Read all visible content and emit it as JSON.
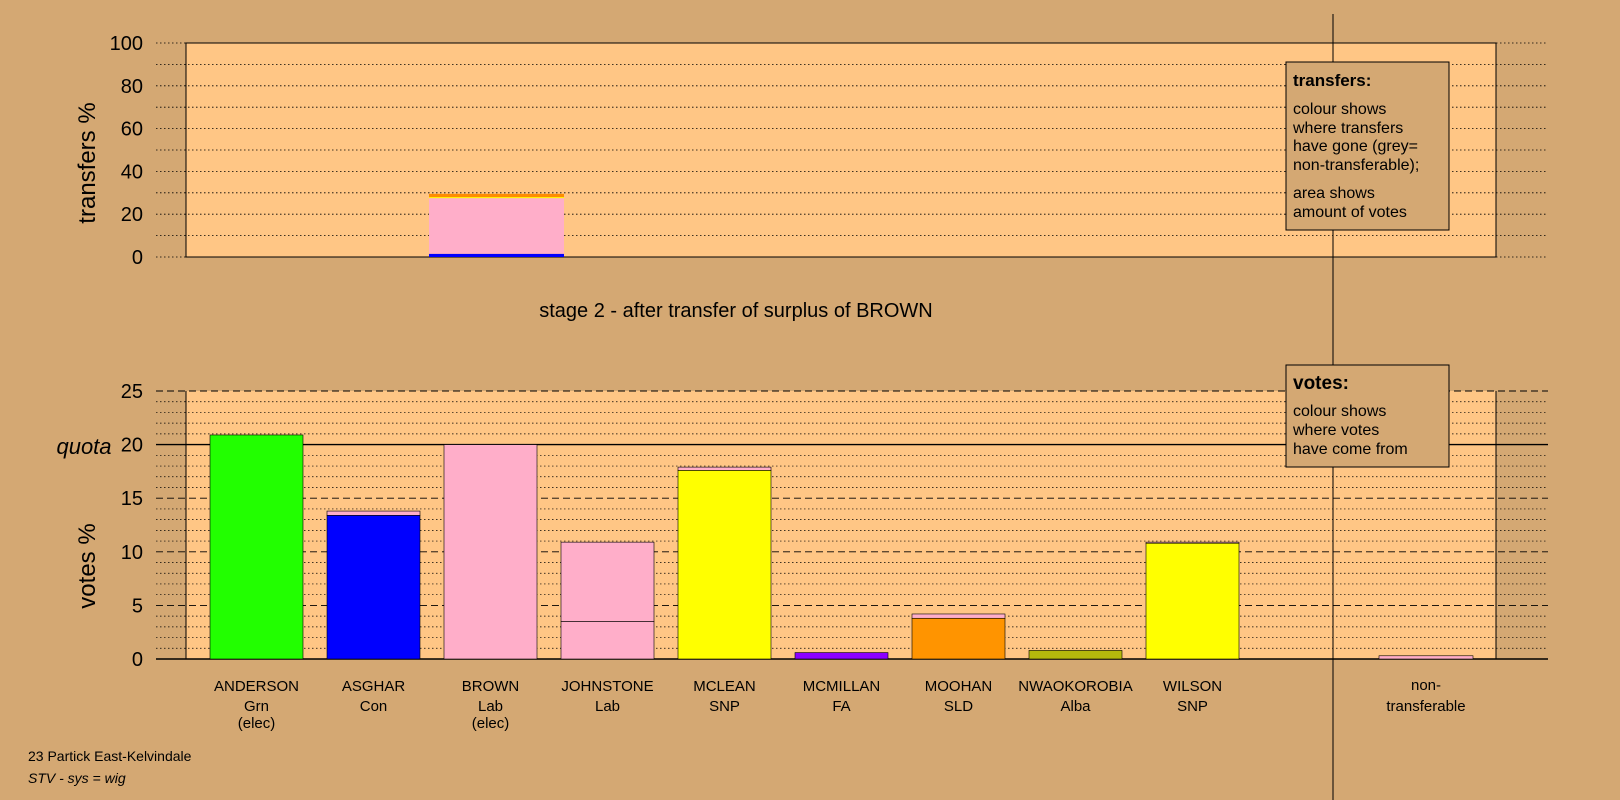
{
  "chart_data": [
    {
      "type": "bar",
      "subtitle": "stage 2 - after transfer of surplus of BROWN",
      "ylabel": "transfers %",
      "ylim": [
        0,
        100
      ],
      "yticks": [
        0,
        20,
        40,
        60,
        80,
        100
      ],
      "bar": {
        "category": "BROWN",
        "segments": [
          {
            "color": "#0000ff",
            "value": 1.5
          },
          {
            "color": "#ffaec9",
            "value": 26
          },
          {
            "color": "#ffff00",
            "value": 0.5
          },
          {
            "color": "#ff8c00",
            "value": 1.5
          }
        ]
      },
      "legend": {
        "title": "transfers:",
        "lines1": [
          "colour shows",
          "where transfers",
          "have gone (grey=",
          "non-transferable);"
        ],
        "lines2": [
          "area shows",
          "amount of votes"
        ]
      }
    },
    {
      "type": "bar",
      "ylabel": "votes %",
      "ylim": [
        0,
        25
      ],
      "yticks": [
        0,
        5,
        10,
        15,
        20,
        25
      ],
      "quota": {
        "label": "quota",
        "value": 20
      },
      "categories": [
        {
          "name": "ANDERSON",
          "party": "Grn",
          "note": "(elec)",
          "segments": [
            {
              "color": "#22ff00",
              "value": 20.9
            }
          ]
        },
        {
          "name": "ASGHAR",
          "party": "Con",
          "note": "",
          "segments": [
            {
              "color": "#0000ff",
              "value": 13.4
            },
            {
              "color": "#ffaec9",
              "value": 0.4
            }
          ]
        },
        {
          "name": "BROWN",
          "party": "Lab",
          "note": "(elec)",
          "segments": [
            {
              "color": "#ffaec9",
              "value": 20
            }
          ]
        },
        {
          "name": "JOHNSTONE",
          "party": "Lab",
          "note": "",
          "segments": [
            {
              "color": "#ffaec9",
              "value": 3.5
            },
            {
              "color": "#ffaec9",
              "value": 7.4
            }
          ]
        },
        {
          "name": "MCLEAN",
          "party": "SNP",
          "note": "",
          "segments": [
            {
              "color": "#ffff00",
              "value": 17.6
            },
            {
              "color": "#ffaec9",
              "value": 0.3
            }
          ]
        },
        {
          "name": "MCMILLAN",
          "party": "FA",
          "note": "",
          "segments": [
            {
              "color": "#8b00ff",
              "value": 0.6
            }
          ]
        },
        {
          "name": "MOOHAN",
          "party": "SLD",
          "note": "",
          "segments": [
            {
              "color": "#ff9400",
              "value": 3.8
            },
            {
              "color": "#ffaec9",
              "value": 0.4
            }
          ]
        },
        {
          "name": "NWAOKOROBIA",
          "party": "Alba",
          "note": "",
          "segments": [
            {
              "color": "#b5b80c",
              "value": 0.8
            }
          ]
        },
        {
          "name": "WILSON",
          "party": "SNP",
          "note": "",
          "segments": [
            {
              "color": "#ffff00",
              "value": 10.8
            },
            {
              "color": "#ffaec9",
              "value": 0.1
            }
          ]
        }
      ],
      "nontransferable": {
        "label1": "non-",
        "label2": "transferable",
        "value": 0.3,
        "color": "#ffaec9"
      },
      "legend": {
        "title": "votes:",
        "lines": [
          "colour shows",
          "where votes",
          "have come from"
        ]
      }
    }
  ],
  "footer": {
    "line1": "23 Partick East-Kelvindale",
    "line2": "STV - sys = wig"
  }
}
